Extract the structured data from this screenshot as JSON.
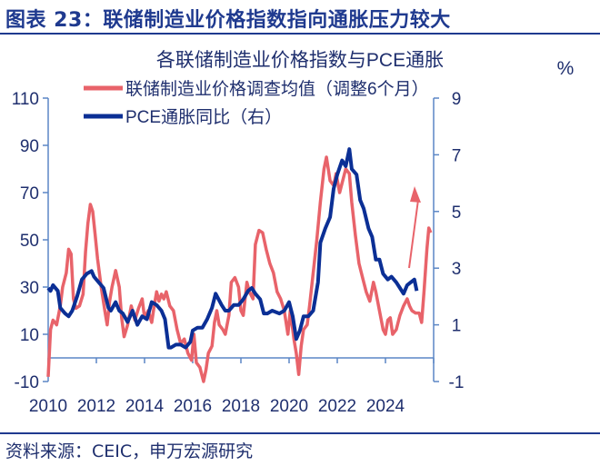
{
  "header": {
    "title": "图表 23：联储制造业价格指数指向通胀压力较大"
  },
  "footer": {
    "source": "资料来源：CEIC，申万宏源研究"
  },
  "colors": {
    "title": "#1f3a8f",
    "red": "#e8636a",
    "blue": "#0b2f95",
    "axis": "#5b86c5",
    "text": "#1f2f6e"
  },
  "chart_data": {
    "type": "line",
    "title": "各联储制造业价格指数与PCE通胀",
    "right_unit": "%",
    "xlim": [
      2010,
      2026
    ],
    "x_ticks": [
      "2010",
      "2012",
      "2014",
      "2016",
      "2018",
      "2020",
      "2022",
      "2024"
    ],
    "ylim_left": [
      -10,
      110
    ],
    "y_ticks_left": [
      "110",
      "90",
      "70",
      "50",
      "30",
      "10",
      "-10"
    ],
    "ylim_right": [
      -1,
      9
    ],
    "y_ticks_right": [
      "9",
      "7",
      "5",
      "3",
      "1",
      "-1"
    ],
    "legend_placement": "top-left",
    "annotation": "red upward arrow near 2025",
    "series": [
      {
        "name": "联储制造业价格调查均值（调整6个月）",
        "axis": "left",
        "color": "#e8636a",
        "points": [
          [
            2010.0,
            -8
          ],
          [
            2010.1,
            12
          ],
          [
            2010.2,
            16
          ],
          [
            2010.35,
            14
          ],
          [
            2010.5,
            22
          ],
          [
            2010.6,
            30
          ],
          [
            2010.75,
            36
          ],
          [
            2010.85,
            46
          ],
          [
            2010.95,
            44
          ],
          [
            2011.05,
            25
          ],
          [
            2011.15,
            21
          ],
          [
            2011.3,
            22
          ],
          [
            2011.45,
            27
          ],
          [
            2011.55,
            45
          ],
          [
            2011.65,
            57
          ],
          [
            2011.75,
            65
          ],
          [
            2011.85,
            62
          ],
          [
            2011.95,
            52
          ],
          [
            2012.05,
            42
          ],
          [
            2012.2,
            30
          ],
          [
            2012.35,
            20
          ],
          [
            2012.45,
            14
          ],
          [
            2012.55,
            24
          ],
          [
            2012.65,
            30
          ],
          [
            2012.8,
            37
          ],
          [
            2012.95,
            30
          ],
          [
            2013.05,
            17
          ],
          [
            2013.15,
            9
          ],
          [
            2013.3,
            14
          ],
          [
            2013.45,
            22
          ],
          [
            2013.6,
            16
          ],
          [
            2013.75,
            21
          ],
          [
            2013.9,
            25
          ],
          [
            2014.0,
            17
          ],
          [
            2014.15,
            20
          ],
          [
            2014.3,
            15
          ],
          [
            2014.4,
            22
          ],
          [
            2014.5,
            28
          ],
          [
            2014.6,
            24
          ],
          [
            2014.7,
            27
          ],
          [
            2014.8,
            25
          ],
          [
            2014.9,
            28
          ],
          [
            2015.05,
            22
          ],
          [
            2015.2,
            20
          ],
          [
            2015.35,
            12
          ],
          [
            2015.5,
            6
          ],
          [
            2015.65,
            8
          ],
          [
            2015.8,
            2
          ],
          [
            2015.95,
            -1
          ],
          [
            2016.05,
            10
          ],
          [
            2016.15,
            -2
          ],
          [
            2016.3,
            -4
          ],
          [
            2016.45,
            -10
          ],
          [
            2016.55,
            -5
          ],
          [
            2016.65,
            2
          ],
          [
            2016.8,
            5
          ],
          [
            2016.9,
            15
          ],
          [
            2017.0,
            20
          ],
          [
            2017.1,
            14
          ],
          [
            2017.25,
            12
          ],
          [
            2017.35,
            10
          ],
          [
            2017.5,
            18
          ],
          [
            2017.6,
            32
          ],
          [
            2017.75,
            34
          ],
          [
            2017.9,
            30
          ],
          [
            2018.0,
            20
          ],
          [
            2018.1,
            18
          ],
          [
            2018.25,
            32
          ],
          [
            2018.35,
            28
          ],
          [
            2018.5,
            25
          ],
          [
            2018.6,
            48
          ],
          [
            2018.75,
            54
          ],
          [
            2018.9,
            53
          ],
          [
            2019.05,
            46
          ],
          [
            2019.2,
            40
          ],
          [
            2019.35,
            36
          ],
          [
            2019.5,
            28
          ],
          [
            2019.65,
            25
          ],
          [
            2019.8,
            20
          ],
          [
            2019.95,
            10
          ],
          [
            2020.05,
            20
          ],
          [
            2020.2,
            8
          ],
          [
            2020.3,
            2
          ],
          [
            2020.4,
            -7
          ],
          [
            2020.5,
            5
          ],
          [
            2020.6,
            12
          ],
          [
            2020.75,
            14
          ],
          [
            2020.85,
            22
          ],
          [
            2021.0,
            36
          ],
          [
            2021.15,
            50
          ],
          [
            2021.3,
            66
          ],
          [
            2021.45,
            80
          ],
          [
            2021.55,
            85
          ],
          [
            2021.7,
            75
          ],
          [
            2021.85,
            73
          ],
          [
            2021.95,
            78
          ],
          [
            2022.1,
            70
          ],
          [
            2022.2,
            74
          ],
          [
            2022.35,
            80
          ],
          [
            2022.5,
            78
          ],
          [
            2022.6,
            66
          ],
          [
            2022.75,
            52
          ],
          [
            2022.9,
            40
          ],
          [
            2023.05,
            34
          ],
          [
            2023.2,
            28
          ],
          [
            2023.35,
            24
          ],
          [
            2023.5,
            32
          ],
          [
            2023.6,
            28
          ],
          [
            2023.75,
            20
          ],
          [
            2023.9,
            12
          ],
          [
            2024.0,
            10
          ],
          [
            2024.1,
            16
          ],
          [
            2024.2,
            17
          ],
          [
            2024.3,
            10
          ],
          [
            2024.45,
            12
          ],
          [
            2024.6,
            18
          ],
          [
            2024.75,
            22
          ],
          [
            2024.9,
            25
          ],
          [
            2025.0,
            22
          ],
          [
            2025.1,
            20
          ],
          [
            2025.25,
            19
          ],
          [
            2025.4,
            19
          ],
          [
            2025.5,
            15
          ],
          [
            2025.6,
            28
          ],
          [
            2025.72,
            46
          ],
          [
            2025.8,
            55
          ],
          [
            2025.88,
            53
          ]
        ]
      },
      {
        "name": "PCE通胀同比（右）",
        "axis": "right",
        "color": "#0b2f95",
        "points": [
          [
            2010.0,
            2.3
          ],
          [
            2010.1,
            2.2
          ],
          [
            2010.2,
            2.4
          ],
          [
            2010.4,
            2.2
          ],
          [
            2010.5,
            1.6
          ],
          [
            2010.7,
            1.4
          ],
          [
            2010.85,
            1.3
          ],
          [
            2011.0,
            1.5
          ],
          [
            2011.2,
            2.0
          ],
          [
            2011.4,
            2.6
          ],
          [
            2011.6,
            2.8
          ],
          [
            2011.8,
            2.9
          ],
          [
            2011.9,
            2.7
          ],
          [
            2012.1,
            2.5
          ],
          [
            2012.3,
            2.3
          ],
          [
            2012.5,
            1.6
          ],
          [
            2012.6,
            1.5
          ],
          [
            2012.8,
            1.8
          ],
          [
            2012.95,
            1.5
          ],
          [
            2013.1,
            1.4
          ],
          [
            2013.3,
            1.1
          ],
          [
            2013.5,
            1.5
          ],
          [
            2013.7,
            1.0
          ],
          [
            2013.9,
            1.3
          ],
          [
            2014.1,
            1.2
          ],
          [
            2014.3,
            1.8
          ],
          [
            2014.5,
            1.7
          ],
          [
            2014.7,
            1.5
          ],
          [
            2014.85,
            1.2
          ],
          [
            2015.0,
            0.2
          ],
          [
            2015.1,
            0.2
          ],
          [
            2015.3,
            0.3
          ],
          [
            2015.5,
            0.3
          ],
          [
            2015.7,
            0.2
          ],
          [
            2015.9,
            0.4
          ],
          [
            2016.0,
            0.8
          ],
          [
            2016.2,
            0.9
          ],
          [
            2016.4,
            0.9
          ],
          [
            2016.6,
            1.2
          ],
          [
            2016.8,
            1.6
          ],
          [
            2016.95,
            2.1
          ],
          [
            2017.2,
            1.7
          ],
          [
            2017.35,
            1.5
          ],
          [
            2017.5,
            1.5
          ],
          [
            2017.7,
            1.7
          ],
          [
            2017.9,
            1.7
          ],
          [
            2018.1,
            1.9
          ],
          [
            2018.3,
            2.2
          ],
          [
            2018.45,
            2.3
          ],
          [
            2018.6,
            2.1
          ],
          [
            2018.8,
            1.9
          ],
          [
            2018.95,
            1.4
          ],
          [
            2019.1,
            1.4
          ],
          [
            2019.3,
            1.5
          ],
          [
            2019.6,
            1.4
          ],
          [
            2019.8,
            1.5
          ],
          [
            2020.0,
            1.8
          ],
          [
            2020.15,
            1.3
          ],
          [
            2020.3,
            0.5
          ],
          [
            2020.45,
            0.8
          ],
          [
            2020.6,
            1.3
          ],
          [
            2020.8,
            1.3
          ],
          [
            2021.0,
            1.5
          ],
          [
            2021.2,
            2.5
          ],
          [
            2021.3,
            3.9
          ],
          [
            2021.5,
            4.4
          ],
          [
            2021.7,
            4.8
          ],
          [
            2021.85,
            5.8
          ],
          [
            2022.0,
            6.3
          ],
          [
            2022.2,
            6.8
          ],
          [
            2022.35,
            6.6
          ],
          [
            2022.5,
            7.2
          ],
          [
            2022.6,
            6.5
          ],
          [
            2022.8,
            6.3
          ],
          [
            2022.95,
            5.4
          ],
          [
            2023.1,
            5.1
          ],
          [
            2023.3,
            4.4
          ],
          [
            2023.45,
            4.1
          ],
          [
            2023.6,
            3.3
          ],
          [
            2023.75,
            3.3
          ],
          [
            2023.9,
            2.8
          ],
          [
            2024.1,
            2.6
          ],
          [
            2024.25,
            2.7
          ],
          [
            2024.45,
            2.5
          ],
          [
            2024.6,
            2.3
          ],
          [
            2024.75,
            2.1
          ],
          [
            2024.9,
            2.4
          ],
          [
            2025.05,
            2.5
          ],
          [
            2025.2,
            2.6
          ],
          [
            2025.3,
            2.2
          ]
        ]
      }
    ]
  }
}
